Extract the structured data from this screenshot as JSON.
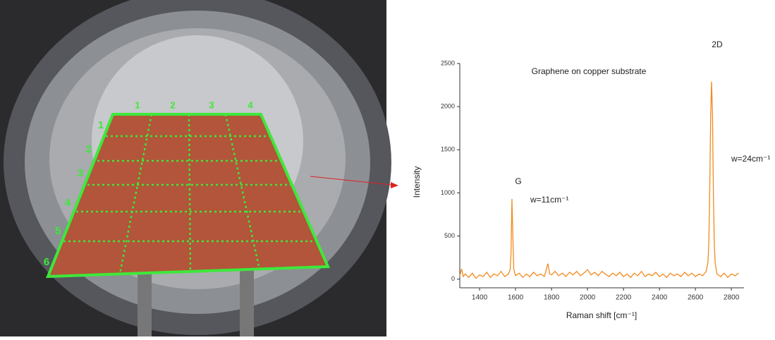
{
  "photo_labels": {
    "rows": [
      "1",
      "2",
      "3",
      "4",
      "5",
      "6"
    ],
    "columns": [
      "1",
      "2",
      "3",
      "4"
    ]
  },
  "chart_data": {
    "type": "line",
    "title": "Graphene on copper substrate",
    "x_label": "Raman shift [cm⁻¹]",
    "y_label": "Intensity",
    "annotations": [
      "G",
      "w=11cm⁻¹",
      "2D",
      "w=24cm⁻¹"
    ],
    "xlim": [
      1290,
      2870
    ],
    "ylim": [
      -100,
      2500
    ],
    "xticks": [
      1400,
      1600,
      1800,
      2000,
      2200,
      2400,
      2600,
      2800
    ],
    "yticks": [
      0,
      500,
      1000,
      1500,
      2000,
      2500
    ],
    "x": [
      1290,
      1300,
      1310,
      1320,
      1340,
      1360,
      1380,
      1400,
      1420,
      1440,
      1460,
      1480,
      1500,
      1520,
      1540,
      1560,
      1570,
      1575,
      1580,
      1585,
      1590,
      1600,
      1620,
      1640,
      1660,
      1680,
      1700,
      1720,
      1740,
      1760,
      1780,
      1790,
      1800,
      1820,
      1840,
      1860,
      1880,
      1900,
      1920,
      1940,
      1960,
      1980,
      2000,
      2020,
      2040,
      2060,
      2080,
      2100,
      2120,
      2140,
      2160,
      2180,
      2200,
      2220,
      2240,
      2260,
      2280,
      2300,
      2320,
      2340,
      2360,
      2380,
      2400,
      2420,
      2440,
      2460,
      2480,
      2500,
      2520,
      2540,
      2560,
      2580,
      2600,
      2620,
      2640,
      2660,
      2670,
      2675,
      2680,
      2685,
      2690,
      2695,
      2700,
      2705,
      2710,
      2720,
      2740,
      2760,
      2780,
      2800,
      2820,
      2840
    ],
    "series": [
      {
        "color": "#f28a1e",
        "values": [
          40,
          120,
          30,
          60,
          20,
          70,
          10,
          50,
          30,
          80,
          20,
          60,
          40,
          90,
          30,
          60,
          110,
          300,
          930,
          500,
          120,
          40,
          70,
          20,
          60,
          30,
          80,
          40,
          60,
          30,
          180,
          60,
          50,
          90,
          40,
          70,
          30,
          80,
          50,
          90,
          40,
          70,
          110,
          50,
          80,
          40,
          90,
          60,
          30,
          70,
          40,
          80,
          30,
          60,
          20,
          70,
          40,
          90,
          30,
          60,
          40,
          80,
          30,
          60,
          20,
          70,
          40,
          60,
          30,
          80,
          40,
          70,
          30,
          60,
          40,
          90,
          200,
          450,
          1100,
          1900,
          2290,
          1900,
          1000,
          420,
          180,
          60,
          30,
          70,
          20,
          60,
          40,
          70
        ]
      }
    ]
  }
}
